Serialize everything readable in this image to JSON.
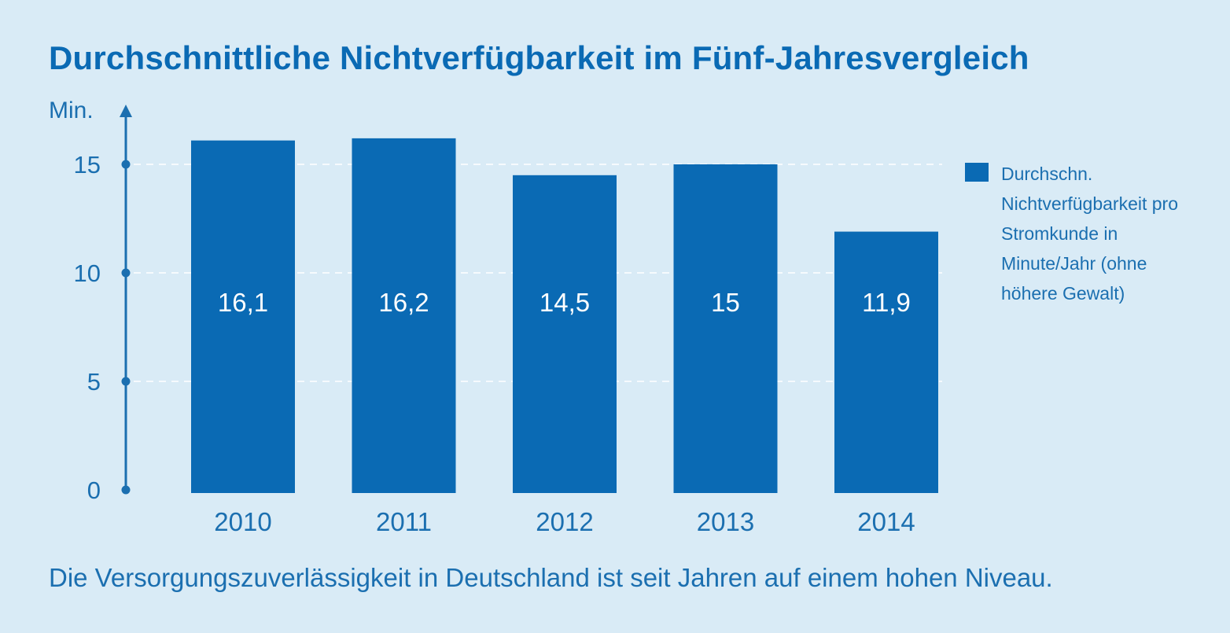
{
  "chart_data": {
    "type": "bar",
    "title": "Durchschnittliche Nichtverfügbarkeit im Fünf-Jahresvergleich",
    "ylabel": "Min.",
    "xlabel": "",
    "categories": [
      "2010",
      "2011",
      "2012",
      "2013",
      "2014"
    ],
    "series": [
      {
        "name": "Durchschn. Nichtverfügbarkeit pro Stromkunde in Minute/Jahr (ohne höhere Gewalt)",
        "values": [
          16.1,
          16.2,
          14.5,
          15,
          11.9
        ],
        "value_labels": [
          "16,1",
          "16,2",
          "14,5",
          "15",
          "11,9"
        ]
      }
    ],
    "yticks": [
      0,
      5,
      10,
      15
    ],
    "ylim": [
      0,
      17.8
    ],
    "grid": "dashed horizontal at 5, 10, 15",
    "legend_position": "right",
    "bar_color": "#0a6ab4",
    "axis_color": "#1b6fb0",
    "background_color": "#d9ebf6",
    "caption": "Die Versorgungszuverlässigkeit in Deutschland ist seit Jahren auf einem hohen Niveau."
  }
}
